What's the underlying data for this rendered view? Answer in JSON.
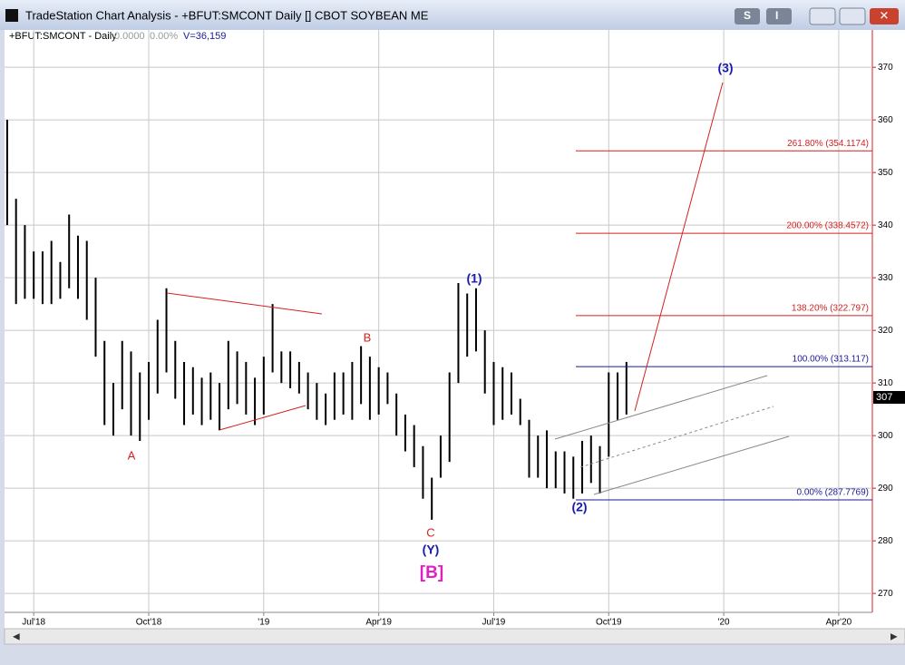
{
  "window": {
    "title": "TradeStation Chart Analysis - +BFUT:SMCONT Daily [] CBOT SOYBEAN ME",
    "buttons": [
      "S",
      "I"
    ]
  },
  "header": {
    "symbol": "+BFUT:SMCONT - Daily",
    "change": "0.0000",
    "change_pct": "0.00%",
    "volume": "V=36,159"
  },
  "chart_data": {
    "type": "ohlc",
    "color": "#000000",
    "high": [
      360,
      345,
      340,
      335,
      335,
      337,
      333,
      342,
      338,
      337,
      330,
      318,
      310,
      318,
      316,
      312,
      314,
      322,
      328,
      318,
      314,
      313,
      311,
      312,
      310,
      318,
      316,
      314,
      311,
      315,
      325,
      316,
      316,
      314,
      312,
      310,
      308,
      312,
      312,
      314,
      317,
      315,
      313,
      312,
      308,
      304,
      302,
      298,
      292,
      300,
      312,
      329,
      327,
      328,
      320,
      314,
      313,
      312,
      307,
      303,
      300,
      301,
      297,
      297,
      296,
      299,
      300,
      298,
      312,
      312,
      314
    ],
    "low": [
      340,
      325,
      326,
      326,
      325,
      325,
      326,
      328,
      326,
      322,
      315,
      302,
      300,
      305,
      300,
      299,
      303,
      308,
      312,
      307,
      302,
      304,
      302,
      303,
      301,
      305,
      306,
      304,
      302,
      304,
      312,
      310,
      309,
      308,
      305,
      303,
      302,
      303,
      304,
      303,
      306,
      303,
      304,
      306,
      300,
      297,
      294,
      288,
      284,
      292,
      295,
      310,
      315,
      316,
      308,
      302,
      303,
      304,
      302,
      292,
      292,
      290,
      290,
      289,
      288,
      289,
      291,
      289,
      296,
      303,
      304
    ],
    "xlim": [
      -0.3,
      97.8
    ],
    "ylim": [
      266.4,
      377.1
    ],
    "xticks": [
      {
        "value": 3,
        "label": "Jul'18"
      },
      {
        "value": 16,
        "label": "Oct'18"
      },
      {
        "value": 29,
        "label": "'19"
      },
      {
        "value": 42,
        "label": "Apr'19"
      },
      {
        "value": 55,
        "label": "Jul'19"
      },
      {
        "value": 68,
        "label": "Oct'19"
      },
      {
        "value": 81,
        "label": "'20"
      },
      {
        "value": 94,
        "label": "Apr'20"
      }
    ],
    "yticks": [
      270,
      280,
      290,
      300,
      310,
      320,
      330,
      340,
      350,
      360,
      370
    ],
    "grid": true,
    "last_price": "307",
    "fib_levels": [
      {
        "label": "261.80% (354.1174)",
        "value": 354.1174,
        "color": "#d42020"
      },
      {
        "label": "200.00% (338.4572)",
        "value": 338.4572,
        "color": "#d42020"
      },
      {
        "label": "138.20% (322.797)",
        "value": 322.797,
        "color": "#d42020"
      },
      {
        "label": "100.00% (313.117)",
        "value": 313.117,
        "color": "#1a1a9a"
      },
      {
        "label": "0.00% (287.7769)",
        "value": 287.7769,
        "color": "#1a1a9a"
      }
    ],
    "annotations": [
      {
        "text": "A",
        "color": "#d42020"
      },
      {
        "text": "B",
        "color": "#d42020"
      },
      {
        "text": "C",
        "color": "#d42020"
      },
      {
        "text": "(1)",
        "color": "#1a1ab0"
      },
      {
        "text": "(Y)",
        "color": "#1a1ab0"
      },
      {
        "text": "[B]",
        "color": "#e020c0"
      },
      {
        "text": "(2)",
        "color": "#1a1ab0"
      },
      {
        "text": "(3)",
        "color": "#1a1ab0"
      }
    ]
  }
}
